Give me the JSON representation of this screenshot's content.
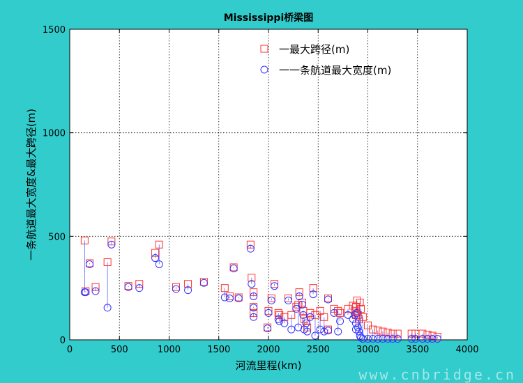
{
  "chart_data": {
    "type": "scatter",
    "title": "Mississippi桥梁图",
    "xlabel": "河流里程(km)",
    "ylabel": "一条航道最大宽度&最大跨径(m)",
    "xlim": [
      0,
      4000
    ],
    "ylim": [
      0,
      1500
    ],
    "xticks": [
      0,
      500,
      1000,
      1500,
      2000,
      2500,
      3000,
      3500,
      4000
    ],
    "yticks": [
      0,
      500,
      1000,
      1500
    ],
    "grid": true,
    "legend_position": "top-right",
    "series": [
      {
        "name": "一最大跨径(m)",
        "marker": "square",
        "color": "#ff3333",
        "points": [
          [
            150,
            480
          ],
          [
            160,
            235
          ],
          [
            200,
            370
          ],
          [
            260,
            255
          ],
          [
            380,
            375
          ],
          [
            420,
            475
          ],
          [
            590,
            260
          ],
          [
            700,
            270
          ],
          [
            860,
            420
          ],
          [
            900,
            460
          ],
          [
            1070,
            255
          ],
          [
            1190,
            270
          ],
          [
            1350,
            280
          ],
          [
            1560,
            250
          ],
          [
            1610,
            210
          ],
          [
            1650,
            350
          ],
          [
            1700,
            205
          ],
          [
            1820,
            460
          ],
          [
            1830,
            300
          ],
          [
            1850,
            230
          ],
          [
            1850,
            160
          ],
          [
            1850,
            130
          ],
          [
            1990,
            60
          ],
          [
            2000,
            140
          ],
          [
            2030,
            200
          ],
          [
            2060,
            270
          ],
          [
            2100,
            130
          ],
          [
            2110,
            120
          ],
          [
            2160,
            110
          ],
          [
            2200,
            200
          ],
          [
            2230,
            120
          ],
          [
            2280,
            160
          ],
          [
            2300,
            170
          ],
          [
            2310,
            230
          ],
          [
            2340,
            180
          ],
          [
            2350,
            140
          ],
          [
            2360,
            100
          ],
          [
            2380,
            90
          ],
          [
            2390,
            60
          ],
          [
            2420,
            130
          ],
          [
            2450,
            250
          ],
          [
            2470,
            120
          ],
          [
            2520,
            140
          ],
          [
            2560,
            110
          ],
          [
            2600,
            200
          ],
          [
            2600,
            50
          ],
          [
            2660,
            150
          ],
          [
            2700,
            140
          ],
          [
            2720,
            130
          ],
          [
            2800,
            150
          ],
          [
            2850,
            165
          ],
          [
            2870,
            140
          ],
          [
            2880,
            120
          ],
          [
            2880,
            160
          ],
          [
            2890,
            190
          ],
          [
            2900,
            120
          ],
          [
            2910,
            100
          ],
          [
            2920,
            180
          ],
          [
            2930,
            150
          ],
          [
            2950,
            110
          ],
          [
            3000,
            70
          ],
          [
            3050,
            50
          ],
          [
            3100,
            45
          ],
          [
            3150,
            40
          ],
          [
            3200,
            35
          ],
          [
            3250,
            30
          ],
          [
            3300,
            30
          ],
          [
            3440,
            30
          ],
          [
            3480,
            30
          ],
          [
            3550,
            30
          ],
          [
            3600,
            25
          ],
          [
            3650,
            20
          ],
          [
            3700,
            15
          ]
        ]
      },
      {
        "name": "一一条航道最大宽度(m)",
        "marker": "circle",
        "color": "#3333ff",
        "points": [
          [
            150,
            230
          ],
          [
            160,
            230
          ],
          [
            200,
            365
          ],
          [
            260,
            235
          ],
          [
            380,
            155
          ],
          [
            420,
            460
          ],
          [
            590,
            255
          ],
          [
            700,
            250
          ],
          [
            860,
            395
          ],
          [
            900,
            365
          ],
          [
            1070,
            245
          ],
          [
            1190,
            240
          ],
          [
            1350,
            275
          ],
          [
            1560,
            205
          ],
          [
            1610,
            200
          ],
          [
            1650,
            345
          ],
          [
            1700,
            200
          ],
          [
            1820,
            440
          ],
          [
            1830,
            270
          ],
          [
            1850,
            210
          ],
          [
            1850,
            155
          ],
          [
            1850,
            110
          ],
          [
            1990,
            55
          ],
          [
            2000,
            130
          ],
          [
            2030,
            190
          ],
          [
            2060,
            260
          ],
          [
            2100,
            100
          ],
          [
            2110,
            90
          ],
          [
            2160,
            80
          ],
          [
            2200,
            190
          ],
          [
            2230,
            50
          ],
          [
            2280,
            150
          ],
          [
            2300,
            60
          ],
          [
            2310,
            210
          ],
          [
            2340,
            170
          ],
          [
            2350,
            120
          ],
          [
            2360,
            50
          ],
          [
            2380,
            80
          ],
          [
            2390,
            40
          ],
          [
            2420,
            110
          ],
          [
            2450,
            220
          ],
          [
            2470,
            20
          ],
          [
            2520,
            50
          ],
          [
            2560,
            40
          ],
          [
            2600,
            195
          ],
          [
            2600,
            45
          ],
          [
            2660,
            130
          ],
          [
            2700,
            40
          ],
          [
            2720,
            90
          ],
          [
            2800,
            120
          ],
          [
            2850,
            100
          ],
          [
            2870,
            120
          ],
          [
            2880,
            80
          ],
          [
            2880,
            50
          ],
          [
            2890,
            130
          ],
          [
            2900,
            60
          ],
          [
            2910,
            40
          ],
          [
            2920,
            20
          ],
          [
            2930,
            10
          ],
          [
            2950,
            5
          ],
          [
            3000,
            5
          ],
          [
            3050,
            5
          ],
          [
            3100,
            5
          ],
          [
            3150,
            5
          ],
          [
            3200,
            5
          ],
          [
            3250,
            5
          ],
          [
            3300,
            5
          ],
          [
            3440,
            5
          ],
          [
            3480,
            5
          ],
          [
            3550,
            5
          ],
          [
            3600,
            5
          ],
          [
            3650,
            5
          ],
          [
            3700,
            5
          ]
        ]
      }
    ]
  },
  "watermark": "www.cnbridge.cn"
}
